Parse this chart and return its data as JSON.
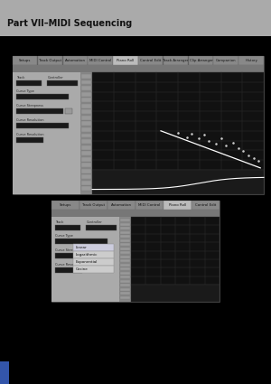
{
  "header_text": "Part VII–MIDI Sequencing",
  "header_bg": "#aaaaaa",
  "page_bg": "#ffffff",
  "dark_bg": "#000000",
  "ss1": {
    "tabs": [
      "Setups",
      "Track Output",
      "Automation",
      "MIDI Control",
      "Piano Roll",
      "Control Edit",
      "Track Arranger",
      "Clip Arranger",
      "Companion",
      "History"
    ],
    "active_tab": "Piano Roll"
  },
  "ss2": {
    "tabs": [
      "Setups",
      "Track Output",
      "Automation",
      "MIDI Control",
      "Piano Roll",
      "Control Edit"
    ],
    "active_tab": "Piano Roll",
    "dropdown_items": [
      "Linear",
      "Logarithmic",
      "Exponential",
      "Cosine"
    ]
  }
}
